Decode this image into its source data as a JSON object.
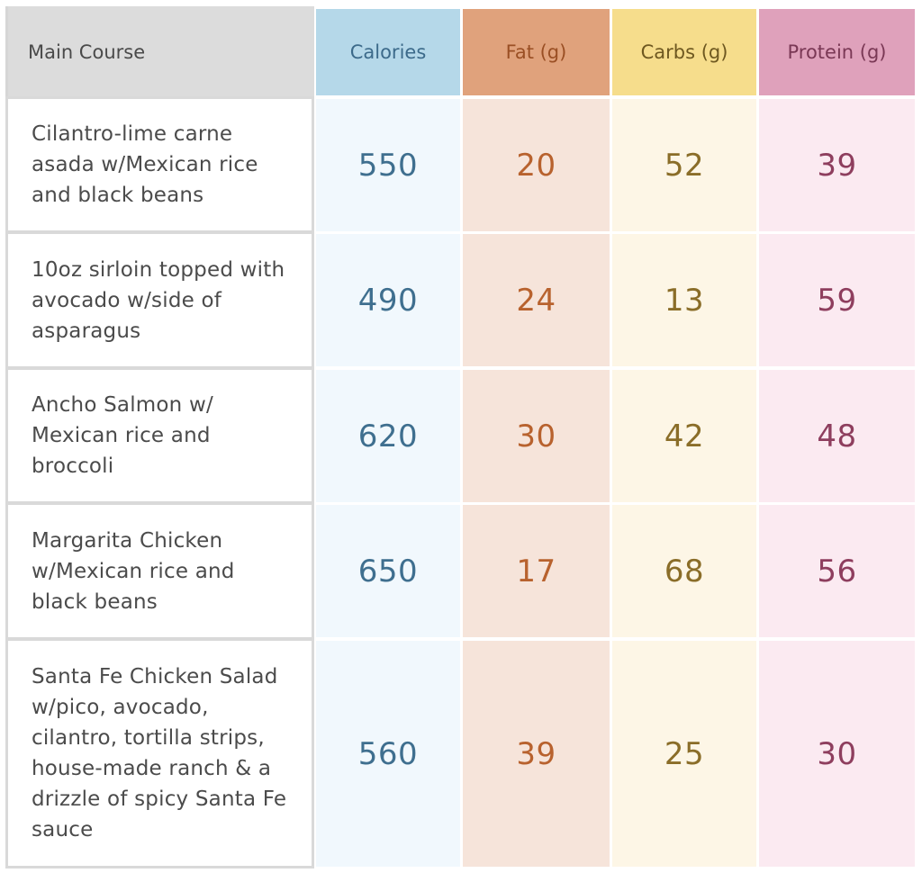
{
  "table": {
    "headers": {
      "main": "Main Course",
      "calories": "Calories",
      "fat": "Fat (g)",
      "carbs": "Carbs (g)",
      "protein": "Protein (g)"
    },
    "rows": [
      {
        "lines": [
          "Cilantro-lime carne",
          "asada w/Mexican rice",
          "and black beans"
        ],
        "calories": "550",
        "fat": "20",
        "carbs": "52",
        "protein": "39"
      },
      {
        "lines": [
          "10oz sirloin topped with",
          "avocado w/side of",
          "asparagus"
        ],
        "calories": "490",
        "fat": "24",
        "carbs": "13",
        "protein": "59"
      },
      {
        "lines": [
          "Ancho Salmon w/",
          "Mexican rice and",
          "broccoli"
        ],
        "calories": "620",
        "fat": "30",
        "carbs": "42",
        "protein": "48"
      },
      {
        "lines": [
          "Margarita Chicken",
          "w/Mexican rice and",
          "black beans"
        ],
        "calories": "650",
        "fat": "17",
        "carbs": "68",
        "protein": "56"
      },
      {
        "lines": [
          "Santa Fe Chicken Salad",
          "w/pico, avocado,",
          "cilantro, tortilla strips,",
          "house-made ranch & a",
          "drizzle of spicy Santa Fe",
          "sauce"
        ],
        "calories": "560",
        "fat": "39",
        "carbs": "25",
        "protein": "30"
      }
    ]
  },
  "colors": {
    "calories_header": "#b5d8e9",
    "fat_header": "#e0a27c",
    "carbs_header": "#f6dd8c",
    "protein_header": "#dfa1bb",
    "main_header": "#dcdcdc"
  }
}
